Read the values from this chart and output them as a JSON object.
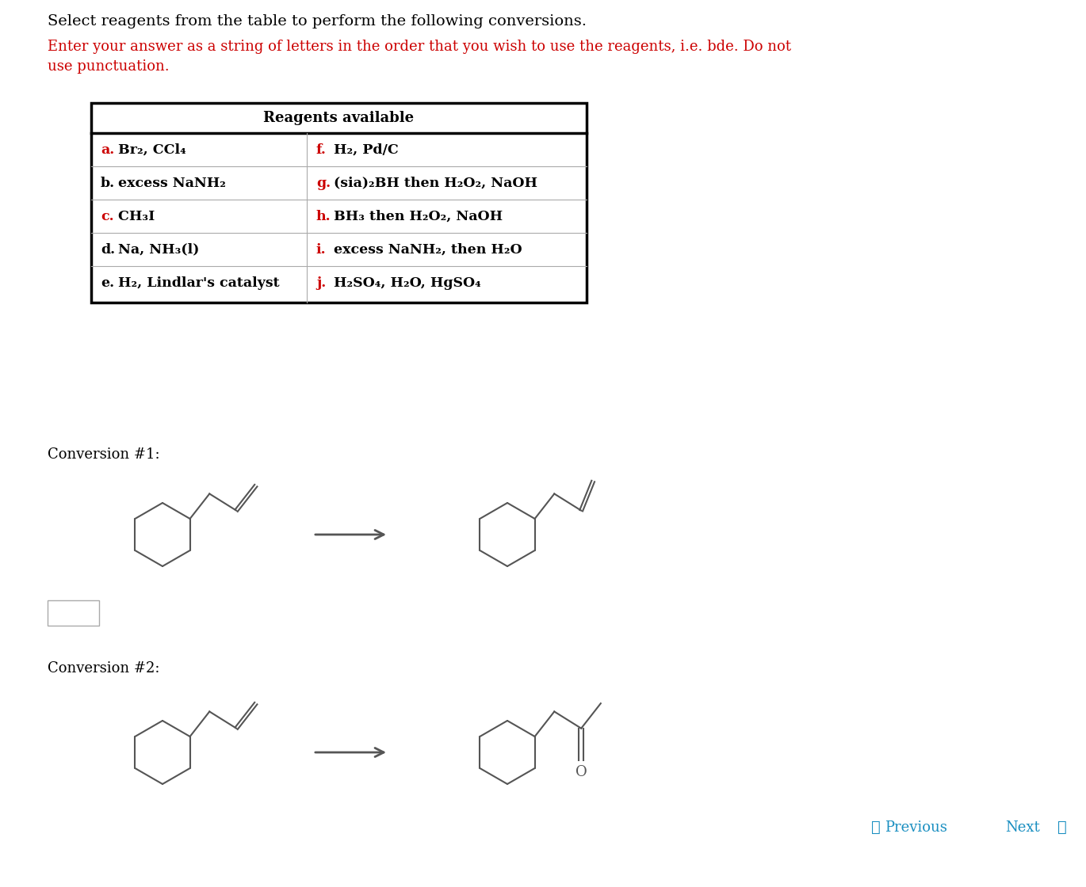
{
  "bg_color": "#ffffff",
  "title_text": "Select reagents from the table to perform the following conversions.",
  "title_color": "#000000",
  "title_fontsize": 14,
  "instruction_text": "Enter your answer as a string of letters in the order that you wish to use the reagents, i.e. bde. Do not\nuse punctuation.",
  "instruction_color": "#cc0000",
  "instruction_fontsize": 13,
  "table_header": "Reagents available",
  "row_left_letters": [
    "a.",
    "b.",
    "c.",
    "d.",
    "e."
  ],
  "row_left_rest": [
    " Br₂, CCl₄",
    " excess NaNH₂",
    " CH₃I",
    " Na, NH₃(l)",
    " H₂, Lindlar's catalyst"
  ],
  "row_right_letters": [
    "f.",
    "g.",
    "h.",
    "i.",
    "j."
  ],
  "row_right_rest": [
    " H₂, Pd/C",
    " (sia)₂BH then H₂O₂, NaOH",
    " BH₃ then H₂O₂, NaOH",
    " excess NaNH₂, then H₂O",
    " H₂SO₄, H₂O, HgSO₄"
  ],
  "left_col_red": [
    true,
    false,
    true,
    false,
    false
  ],
  "right_col_red": [
    true,
    true,
    true,
    true,
    true
  ],
  "conv1_label": "Conversion #1:",
  "conv2_label": "Conversion #2:",
  "conv_label_fontsize": 13,
  "nav_prev": "Previous",
  "nav_next": "Next",
  "nav_color": "#1a8fc1"
}
